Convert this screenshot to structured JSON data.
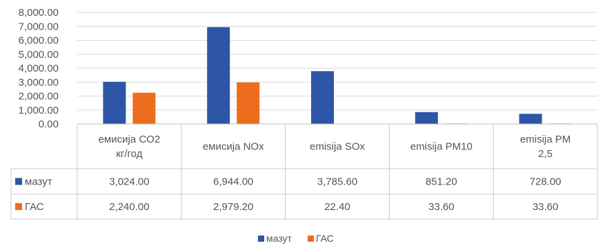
{
  "chart_data": {
    "type": "bar",
    "categories": [
      "емисија CO2 кг/год",
      "емисија NOx",
      "emisija SOx",
      "emisija PM10",
      "emisija PM 2,5"
    ],
    "category_lines": [
      [
        "емисија CO2",
        "кг/год"
      ],
      [
        "емисија NOx"
      ],
      [
        "emisija SOx"
      ],
      [
        "emisija PM10"
      ],
      [
        "emisija PM",
        "2,5"
      ]
    ],
    "series": [
      {
        "name": "мазут",
        "color": "#2E55A6",
        "values": [
          3024.0,
          6944.0,
          3785.6,
          851.2,
          728.0
        ],
        "labels": [
          "3,024.00",
          "6,944.00",
          "3,785.60",
          "851.20",
          "728.00"
        ]
      },
      {
        "name": "ГАС",
        "color": "#ED6D1E",
        "values": [
          2240.0,
          2979.2,
          22.4,
          33.6,
          33.6
        ],
        "labels": [
          "2,240.00",
          "2,979.20",
          "22.40",
          "33.60",
          "33.60"
        ]
      }
    ],
    "ylim": [
      0,
      8000
    ],
    "yticks": [
      "0.00",
      "1,000.00",
      "2,000.00",
      "3,000.00",
      "4,000.00",
      "5,000.00",
      "6,000.00",
      "7,000.00",
      "8,000.00"
    ],
    "grid": true,
    "legend_position": "bottom"
  }
}
